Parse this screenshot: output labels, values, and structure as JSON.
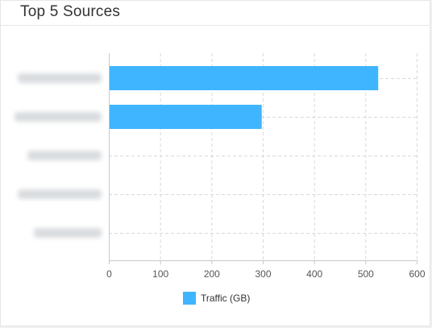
{
  "card": {
    "title": "Top 5 Sources"
  },
  "chart_data": {
    "type": "bar",
    "orientation": "horizontal",
    "categories": [
      "",
      "",
      "",
      "",
      ""
    ],
    "category_labels_obscured": true,
    "series": [
      {
        "name": "Traffic (GB)",
        "values": [
          525,
          298,
          1,
          1,
          1
        ],
        "color": "#3fb5ff"
      }
    ],
    "xlim": [
      0,
      600
    ],
    "xticks": [
      0,
      100,
      200,
      300,
      400,
      500,
      600
    ],
    "grid": true,
    "legend_position": "bottom-center",
    "title": "",
    "xlabel": "",
    "ylabel": ""
  }
}
